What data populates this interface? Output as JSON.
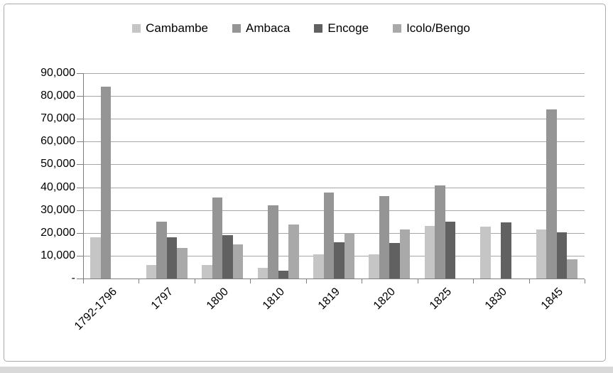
{
  "colors": {
    "frame_border": "#ababab",
    "gridline": "#a6a6a6",
    "axis": "#7f7f7f",
    "text": "#000000",
    "bottom_strip": "#d9d9d9",
    "background": "#ffffff"
  },
  "chart_data": {
    "type": "bar",
    "title": "",
    "categories": [
      "1792-1796",
      "1797",
      "1800",
      "1810",
      "1819",
      "1820",
      "1825",
      "1830",
      "1845"
    ],
    "series": [
      {
        "name": "Cambambe",
        "color": "#c5c5c5",
        "values": [
          18000,
          6000,
          6000,
          4800,
          10500,
          10500,
          23200,
          22700,
          21500
        ]
      },
      {
        "name": "Ambaca",
        "color": "#959595",
        "values": [
          84000,
          25000,
          35500,
          32000,
          37700,
          36200,
          40800,
          0,
          74000
        ]
      },
      {
        "name": "Encoge",
        "color": "#616161",
        "values": [
          0,
          18000,
          19000,
          3500,
          16000,
          15600,
          25000,
          24700,
          20200
        ]
      },
      {
        "name": "Icolo/Bengo",
        "color": "#a9a9a9",
        "values": [
          0,
          13300,
          14800,
          23700,
          20000,
          21400,
          0,
          0,
          8300
        ]
      }
    ],
    "ylim": [
      0,
      90000
    ],
    "ytick_step": 10000,
    "ytick_labels": [
      "-",
      "10,000",
      "20,000",
      "30,000",
      "40,000",
      "50,000",
      "60,000",
      "70,000",
      "80,000",
      "90,000"
    ],
    "grid": true,
    "legend_position": "top",
    "x_label_rotation_deg": -45
  }
}
